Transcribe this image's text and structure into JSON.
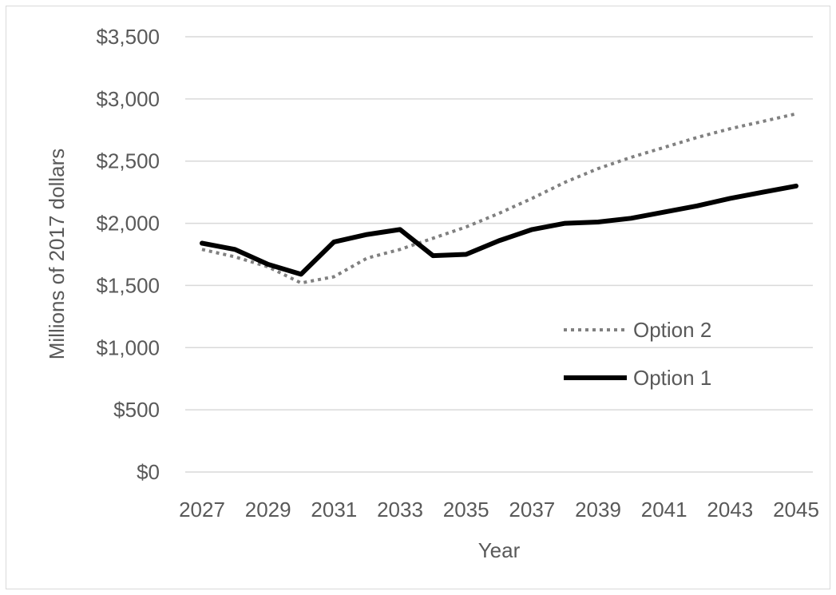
{
  "chart_data": {
    "type": "line",
    "xlabel": "Year",
    "ylabel": "Millions of 2017 dollars",
    "ylim": [
      0,
      3500
    ],
    "yticks": [
      0,
      500,
      1000,
      1500,
      2000,
      2500,
      3000,
      3500
    ],
    "ytick_labels": [
      "$0",
      "$500",
      "$1,000",
      "$1,500",
      "$2,000",
      "$2,500",
      "$3,000",
      "$3,500"
    ],
    "xticks": [
      2027,
      2029,
      2031,
      2033,
      2035,
      2037,
      2039,
      2041,
      2043,
      2045
    ],
    "xtick_labels": [
      "2027",
      "2029",
      "2031",
      "2033",
      "2035",
      "2037",
      "2039",
      "2041",
      "2043",
      "2045"
    ],
    "grid": "horizontal",
    "legend_position": "right",
    "series": [
      {
        "name": "Option 2",
        "style": "dotted",
        "color": "#808080",
        "x": [
          2027,
          2028,
          2029,
          2030,
          2031,
          2032,
          2033,
          2034,
          2035,
          2036,
          2037,
          2038,
          2039,
          2040,
          2041,
          2042,
          2043,
          2044,
          2045
        ],
        "values": [
          1790,
          1730,
          1650,
          1520,
          1570,
          1720,
          1790,
          1880,
          1970,
          2080,
          2200,
          2330,
          2440,
          2530,
          2610,
          2690,
          2760,
          2820,
          2880
        ]
      },
      {
        "name": "Option 1",
        "style": "solid",
        "color": "#000000",
        "x": [
          2027,
          2028,
          2029,
          2030,
          2031,
          2032,
          2033,
          2034,
          2035,
          2036,
          2037,
          2038,
          2039,
          2040,
          2041,
          2042,
          2043,
          2044,
          2045
        ],
        "values": [
          1840,
          1790,
          1670,
          1590,
          1850,
          1910,
          1950,
          1740,
          1750,
          1860,
          1950,
          2000,
          2010,
          2040,
          2090,
          2140,
          2200,
          2250,
          2300
        ]
      }
    ]
  }
}
